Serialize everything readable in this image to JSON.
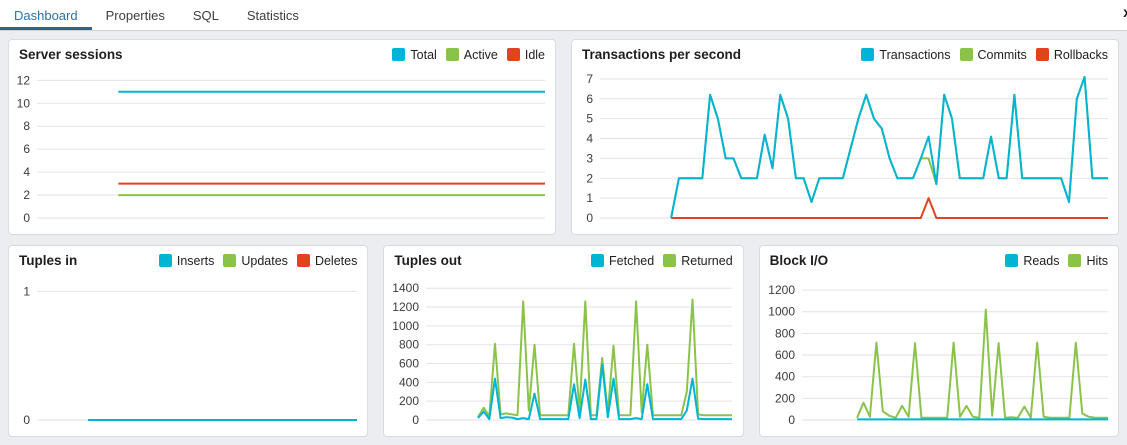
{
  "tab_bar": {
    "tabs": [
      {
        "label": "Dashboard",
        "active": true
      },
      {
        "label": "Properties",
        "active": false
      },
      {
        "label": "SQL",
        "active": false
      },
      {
        "label": "Statistics",
        "active": false
      }
    ],
    "close_label": "x"
  },
  "colors": {
    "active_tab_text": "#2c71a9",
    "active_tab_underline": "#33628c",
    "series_cyan": "#00b4d4",
    "series_green": "#8bc34a",
    "series_red": "#e2431f",
    "gridline": "#e2e2ea",
    "page_background": "#ebedf0"
  },
  "chart_data": [
    {
      "id": "server_sessions",
      "type": "line",
      "title": "Server sessions",
      "ylim": [
        0,
        12.9
      ],
      "yticks": [
        0,
        2,
        4,
        6,
        8,
        10,
        12
      ],
      "start_frac": 0.16,
      "series": [
        {
          "name": "Total",
          "color": "#00b4d4",
          "values": [
            11,
            11
          ]
        },
        {
          "name": "Active",
          "color": "#8bc34a",
          "values": [
            2,
            2
          ]
        },
        {
          "name": "Idle",
          "color": "#e2431f",
          "values": [
            3,
            3
          ]
        }
      ]
    },
    {
      "id": "transactions_per_second",
      "type": "line",
      "title": "Transactions per second",
      "ylim": [
        0,
        7.45
      ],
      "yticks": [
        0,
        1,
        2,
        3,
        4,
        5,
        6,
        7
      ],
      "start_frac": 0.14,
      "series": [
        {
          "name": "Transactions",
          "color": "#00b4d4",
          "values": [
            0,
            2,
            2,
            2,
            2,
            6.2,
            5,
            3,
            3,
            2,
            2,
            2,
            4.2,
            2.5,
            6.2,
            5,
            2,
            2,
            0.8,
            2,
            2,
            2,
            2,
            3.5,
            5,
            6.2,
            5,
            4.5,
            3,
            2,
            2,
            2,
            3,
            4.1,
            1.7,
            6.2,
            5,
            2,
            2,
            2,
            2,
            4.1,
            2,
            2,
            6.2,
            2,
            2,
            2,
            2,
            2,
            2,
            0.8,
            6,
            7.1,
            2,
            2,
            2
          ]
        },
        {
          "name": "Commits",
          "color": "#8bc34a",
          "values": [
            0,
            2,
            2,
            2,
            2,
            6.2,
            5,
            3,
            3,
            2,
            2,
            2,
            4.2,
            2.5,
            6.2,
            5,
            2,
            2,
            0.8,
            2,
            2,
            2,
            2,
            3.5,
            5,
            6.2,
            5,
            4.5,
            3,
            2,
            2,
            2,
            3,
            3,
            1.7,
            6.2,
            5,
            2,
            2,
            2,
            2,
            4.1,
            2,
            2,
            6.2,
            2,
            2,
            2,
            2,
            2,
            2,
            0.8,
            6,
            7.1,
            2,
            2,
            2
          ]
        },
        {
          "name": "Rollbacks",
          "color": "#e2431f",
          "values": [
            0,
            0,
            0,
            0,
            0,
            0,
            0,
            0,
            0,
            0,
            0,
            0,
            0,
            0,
            0,
            0,
            0,
            0,
            0,
            0,
            0,
            0,
            0,
            0,
            0,
            0,
            0,
            0,
            0,
            0,
            0,
            0,
            0,
            1,
            0,
            0,
            0,
            0,
            0,
            0,
            0,
            0,
            0,
            0,
            0,
            0,
            0,
            0,
            0,
            0,
            0,
            0,
            0,
            0,
            0,
            0,
            0
          ]
        }
      ]
    },
    {
      "id": "tuples_in",
      "type": "line",
      "title": "Tuples in",
      "ylim": [
        0,
        1.12
      ],
      "yticks": [
        0,
        1
      ],
      "start_frac": 0.16,
      "series": [
        {
          "name": "Inserts",
          "color": "#00b4d4",
          "values": [
            0,
            0
          ]
        },
        {
          "name": "Updates",
          "color": "#8bc34a",
          "values": [
            0,
            0
          ]
        },
        {
          "name": "Deletes",
          "color": "#e2431f",
          "values": [
            0,
            0
          ]
        }
      ]
    },
    {
      "id": "tuples_out",
      "type": "line",
      "title": "Tuples out",
      "ylim": [
        0,
        1530
      ],
      "yticks": [
        0,
        200,
        400,
        600,
        800,
        1000,
        1200,
        1400
      ],
      "start_frac": 0.17,
      "series": [
        {
          "name": "Fetched",
          "color": "#00b4d4",
          "values": [
            20,
            90,
            10,
            440,
            20,
            30,
            25,
            10,
            20,
            10,
            280,
            10,
            10,
            10,
            10,
            10,
            10,
            380,
            20,
            430,
            10,
            10,
            590,
            30,
            440,
            10,
            10,
            10,
            20,
            10,
            380,
            10,
            10,
            10,
            10,
            10,
            10,
            100,
            440,
            15,
            10,
            10,
            10,
            10,
            10,
            10
          ]
        },
        {
          "name": "Returned",
          "color": "#8bc34a",
          "values": [
            30,
            130,
            40,
            810,
            60,
            70,
            60,
            50,
            1260,
            100,
            800,
            50,
            50,
            50,
            50,
            50,
            50,
            810,
            100,
            1260,
            50,
            50,
            660,
            80,
            790,
            50,
            50,
            50,
            1260,
            80,
            800,
            50,
            50,
            50,
            50,
            50,
            50,
            300,
            1280,
            60,
            50,
            50,
            50,
            50,
            50,
            50
          ]
        }
      ]
    },
    {
      "id": "block_io",
      "type": "line",
      "title": "Block I/O",
      "ylim": [
        0,
        1330
      ],
      "yticks": [
        0,
        200,
        400,
        600,
        800,
        1000,
        1200
      ],
      "start_frac": 0.18,
      "series": [
        {
          "name": "Reads",
          "color": "#00b4d4",
          "values": [
            6,
            6
          ]
        },
        {
          "name": "Hits",
          "color": "#8bc34a",
          "values": [
            20,
            160,
            30,
            715,
            80,
            40,
            20,
            130,
            30,
            710,
            20,
            20,
            20,
            20,
            20,
            715,
            30,
            130,
            30,
            20,
            1020,
            40,
            710,
            20,
            25,
            20,
            125,
            20,
            715,
            30,
            20,
            20,
            20,
            20,
            715,
            60,
            30,
            20,
            20,
            20
          ]
        }
      ]
    }
  ]
}
